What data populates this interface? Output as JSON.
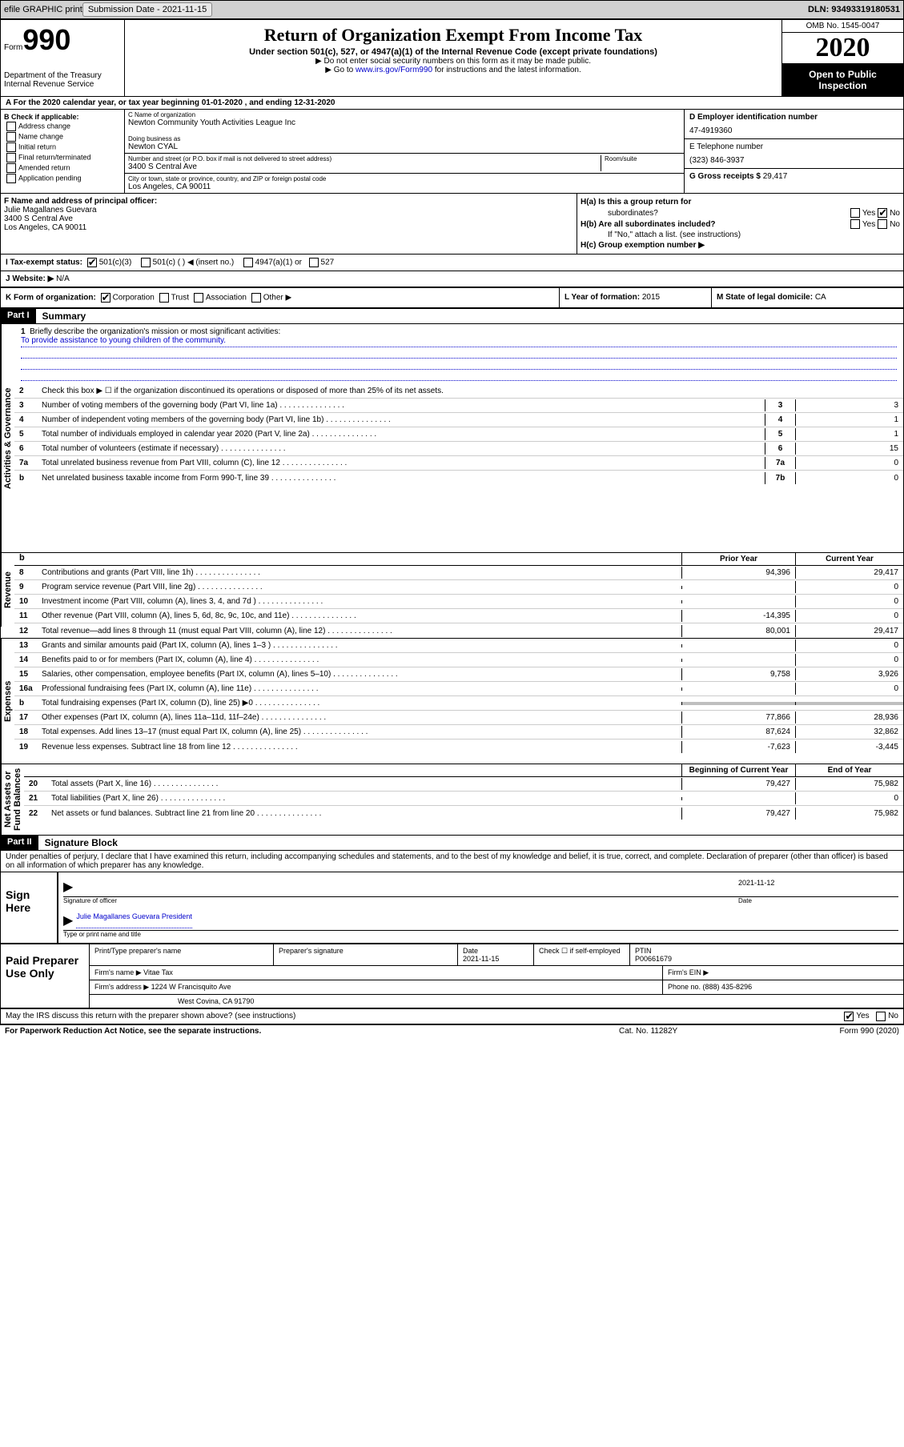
{
  "topbar": {
    "efile": "efile GRAPHIC print",
    "submission_label": "Submission Date - ",
    "submission_date": "2021-11-15",
    "dln_label": "DLN: ",
    "dln": "93493319180531"
  },
  "header": {
    "form_label": "Form",
    "form_number": "990",
    "dept": "Department of the Treasury\nInternal Revenue Service",
    "title": "Return of Organization Exempt From Income Tax",
    "subtitle": "Under section 501(c), 527, or 4947(a)(1) of the Internal Revenue Code (except private foundations)",
    "note1": "▶ Do not enter social security numbers on this form as it may be made public.",
    "note2_pre": "▶ Go to ",
    "note2_link": "www.irs.gov/Form990",
    "note2_post": " for instructions and the latest information.",
    "omb": "OMB No. 1545-0047",
    "year": "2020",
    "open": "Open to Public Inspection"
  },
  "rowA": "A   For the 2020 calendar year, or tax year beginning 01-01-2020    , and ending 12-31-2020",
  "boxB": {
    "title": "B Check if applicable:",
    "items": [
      "Address change",
      "Name change",
      "Initial return",
      "Final return/terminated",
      "Amended return",
      "Application pending"
    ]
  },
  "boxC": {
    "name_lbl": "C Name of organization",
    "name": "Newton Community Youth Activities League Inc",
    "dba_lbl": "Doing business as",
    "dba": "Newton CYAL",
    "addr_lbl": "Number and street (or P.O. box if mail is not delivered to street address)",
    "room_lbl": "Room/suite",
    "addr": "3400 S Central Ave",
    "city_lbl": "City or town, state or province, country, and ZIP or foreign postal code",
    "city": "Los Angeles, CA  90011"
  },
  "boxD": {
    "ein_lbl": "D Employer identification number",
    "ein": "47-4919360",
    "tel_lbl": "E Telephone number",
    "tel": "(323) 846-3937",
    "g_lbl": "G Gross receipts $ ",
    "g_val": "29,417"
  },
  "boxF": {
    "lbl": "F  Name and address of principal officer:",
    "name": "Julie Magallanes Guevara",
    "addr1": "3400 S Central Ave",
    "addr2": "Los Angeles, CA  90011"
  },
  "boxH": {
    "ha": "H(a)  Is this a group return for",
    "ha2": "subordinates?",
    "hb": "H(b)  Are all subordinates included?",
    "hb2": "If \"No,\" attach a list. (see instructions)",
    "hc": "H(c)  Group exemption number ▶"
  },
  "taxI": {
    "lbl": "I    Tax-exempt status:",
    "o1": "501(c)(3)",
    "o2": "501(c) (  ) ◀ (insert no.)",
    "o3": "4947(a)(1) or",
    "o4": "527"
  },
  "rowJ": {
    "lbl": "J    Website: ▶  ",
    "val": "N/A"
  },
  "rowK": "K Form of organization:",
  "rowK_opts": [
    "Corporation",
    "Trust",
    "Association",
    "Other ▶"
  ],
  "rowL": {
    "lbl": "L Year of formation: ",
    "val": "2015"
  },
  "rowM": {
    "lbl": "M State of legal domicile: ",
    "val": "CA"
  },
  "part1": {
    "hdr": "Part I",
    "title": "Summary"
  },
  "ag_label": "Activities & Governance",
  "mission": {
    "num": "1",
    "txt": "Briefly describe the organization's mission or most significant activities:",
    "val": "To provide assistance to young children of the community."
  },
  "lines_ag": [
    {
      "n": "2",
      "t": "Check this box ▶ ☐  if the organization discontinued its operations or disposed of more than 25% of its net assets."
    },
    {
      "n": "3",
      "t": "Number of voting members of the governing body (Part VI, line 1a)",
      "c": "3",
      "v": "3"
    },
    {
      "n": "4",
      "t": "Number of independent voting members of the governing body (Part VI, line 1b)",
      "c": "4",
      "v": "1"
    },
    {
      "n": "5",
      "t": "Total number of individuals employed in calendar year 2020 (Part V, line 2a)",
      "c": "5",
      "v": "1"
    },
    {
      "n": "6",
      "t": "Total number of volunteers (estimate if necessary)",
      "c": "6",
      "v": "15"
    },
    {
      "n": "7a",
      "t": "Total unrelated business revenue from Part VIII, column (C), line 12",
      "c": "7a",
      "v": "0"
    },
    {
      "n": "b",
      "t": "Net unrelated business taxable income from Form 990-T, line 39",
      "c": "7b",
      "v": "0"
    }
  ],
  "rev_label": "Revenue",
  "rev_hdr": {
    "py": "Prior Year",
    "cy": "Current Year"
  },
  "lines_rev": [
    {
      "n": "8",
      "t": "Contributions and grants (Part VIII, line 1h)",
      "py": "94,396",
      "cy": "29,417"
    },
    {
      "n": "9",
      "t": "Program service revenue (Part VIII, line 2g)",
      "py": "",
      "cy": "0"
    },
    {
      "n": "10",
      "t": "Investment income (Part VIII, column (A), lines 3, 4, and 7d )",
      "py": "",
      "cy": "0"
    },
    {
      "n": "11",
      "t": "Other revenue (Part VIII, column (A), lines 5, 6d, 8c, 9c, 10c, and 11e)",
      "py": "-14,395",
      "cy": "0"
    },
    {
      "n": "12",
      "t": "Total revenue—add lines 8 through 11 (must equal Part VIII, column (A), line 12)",
      "py": "80,001",
      "cy": "29,417"
    }
  ],
  "exp_label": "Expenses",
  "lines_exp": [
    {
      "n": "13",
      "t": "Grants and similar amounts paid (Part IX, column (A), lines 1–3 )",
      "py": "",
      "cy": "0"
    },
    {
      "n": "14",
      "t": "Benefits paid to or for members (Part IX, column (A), line 4)",
      "py": "",
      "cy": "0"
    },
    {
      "n": "15",
      "t": "Salaries, other compensation, employee benefits (Part IX, column (A), lines 5–10)",
      "py": "9,758",
      "cy": "3,926"
    },
    {
      "n": "16a",
      "t": "Professional fundraising fees (Part IX, column (A), line 11e)",
      "py": "",
      "cy": "0"
    },
    {
      "n": "b",
      "t": "Total fundraising expenses (Part IX, column (D), line 25) ▶0",
      "py": "grey",
      "cy": "grey"
    },
    {
      "n": "17",
      "t": "Other expenses (Part IX, column (A), lines 11a–11d, 11f–24e)",
      "py": "77,866",
      "cy": "28,936"
    },
    {
      "n": "18",
      "t": "Total expenses. Add lines 13–17 (must equal Part IX, column (A), line 25)",
      "py": "87,624",
      "cy": "32,862"
    },
    {
      "n": "19",
      "t": "Revenue less expenses. Subtract line 18 from line 12",
      "py": "-7,623",
      "cy": "-3,445"
    }
  ],
  "na_label": "Net Assets or Fund Balances",
  "na_hdr": {
    "py": "Beginning of Current Year",
    "cy": "End of Year"
  },
  "lines_na": [
    {
      "n": "20",
      "t": "Total assets (Part X, line 16)",
      "py": "79,427",
      "cy": "75,982"
    },
    {
      "n": "21",
      "t": "Total liabilities (Part X, line 26)",
      "py": "",
      "cy": "0"
    },
    {
      "n": "22",
      "t": "Net assets or fund balances. Subtract line 21 from line 20",
      "py": "79,427",
      "cy": "75,982"
    }
  ],
  "part2": {
    "hdr": "Part II",
    "title": "Signature Block"
  },
  "penalty": "Under penalties of perjury, I declare that I have examined this return, including accompanying schedules and statements, and to the best of my knowledge and belief, it is true, correct, and complete. Declaration of preparer (other than officer) is based on all information of which preparer has any knowledge.",
  "sign": {
    "here": "Sign Here",
    "sig_lbl": "Signature of officer",
    "date": "2021-11-12",
    "date_lbl": "Date",
    "name": "Julie Magallanes Guevara  President",
    "name_lbl": "Type or print name and title"
  },
  "prep": {
    "lbl": "Paid Preparer Use Only",
    "r1": {
      "c1": "Print/Type preparer's name",
      "c2": "Preparer's signature",
      "c3_lbl": "Date",
      "c3": "2021-11-15",
      "c4": "Check ☐  if self-employed",
      "c5_lbl": "PTIN",
      "c5": "P00661679"
    },
    "r2": {
      "c1": "Firm's name    ▶  Vitae Tax",
      "c2": "Firm's EIN ▶"
    },
    "r3": {
      "c1": "Firm's address ▶ 1224 W Francisquito Ave",
      "c2": "Phone no. (888) 435-8296"
    },
    "r4": "West Covina, CA  91790"
  },
  "irs_q": "May the IRS discuss this return with the preparer shown above? (see instructions)",
  "foot": {
    "l": "For Paperwork Reduction Act Notice, see the separate instructions.",
    "m": "Cat. No. 11282Y",
    "r": "Form 990 (2020)"
  },
  "yes": "Yes",
  "no": "No"
}
